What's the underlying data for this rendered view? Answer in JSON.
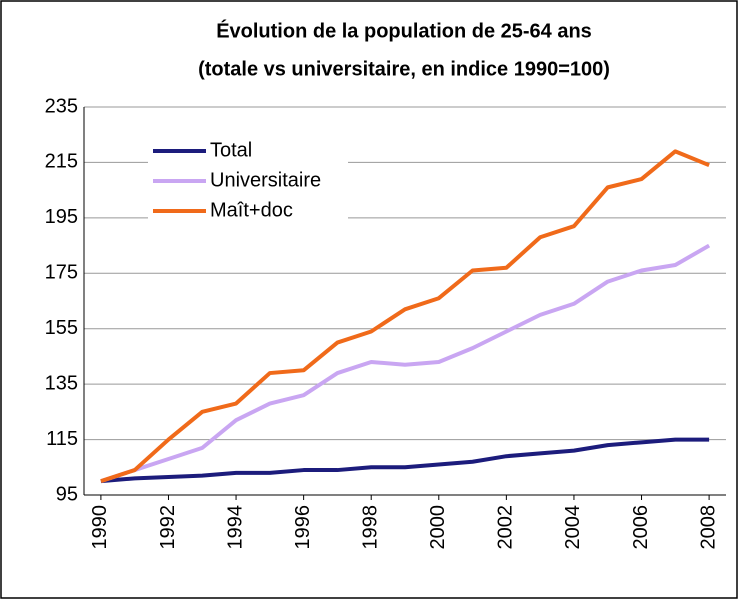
{
  "chart_data": {
    "type": "line",
    "title": [
      "Évolution de la population de 25-64 ans",
      "(totale vs universitaire, en indice 1990=100)"
    ],
    "x": [
      1990,
      1991,
      1992,
      1993,
      1994,
      1995,
      1996,
      1997,
      1998,
      1999,
      2000,
      2001,
      2002,
      2003,
      2004,
      2005,
      2006,
      2007,
      2008
    ],
    "series": [
      {
        "name": "Total",
        "color": "#1c1c7c",
        "values": [
          100,
          101,
          101.5,
          102,
          103,
          103,
          104,
          104,
          105,
          105,
          106,
          107,
          109,
          110,
          111,
          113,
          114,
          115,
          115
        ]
      },
      {
        "name": "Universitaire",
        "color": "#c9a6f2",
        "values": [
          100,
          104,
          108,
          112,
          122,
          128,
          131,
          139,
          143,
          142,
          143,
          148,
          154,
          160,
          164,
          172,
          176,
          178,
          185
        ]
      },
      {
        "name": "Maît+doc",
        "color": "#f06a1a",
        "values": [
          100,
          104,
          115,
          125,
          128,
          139,
          140,
          150,
          154,
          162,
          166,
          176,
          177,
          188,
          192,
          206,
          209,
          219,
          214
        ]
      }
    ],
    "xlim": [
      1989.5,
      2008.5
    ],
    "xticks": [
      1990,
      1992,
      1994,
      1996,
      1998,
      2000,
      2002,
      2004,
      2006,
      2008
    ],
    "ylim": [
      95,
      235
    ],
    "yticks": [
      95,
      115,
      135,
      155,
      175,
      195,
      215,
      235
    ],
    "grid": true,
    "legend": "upper-left"
  }
}
